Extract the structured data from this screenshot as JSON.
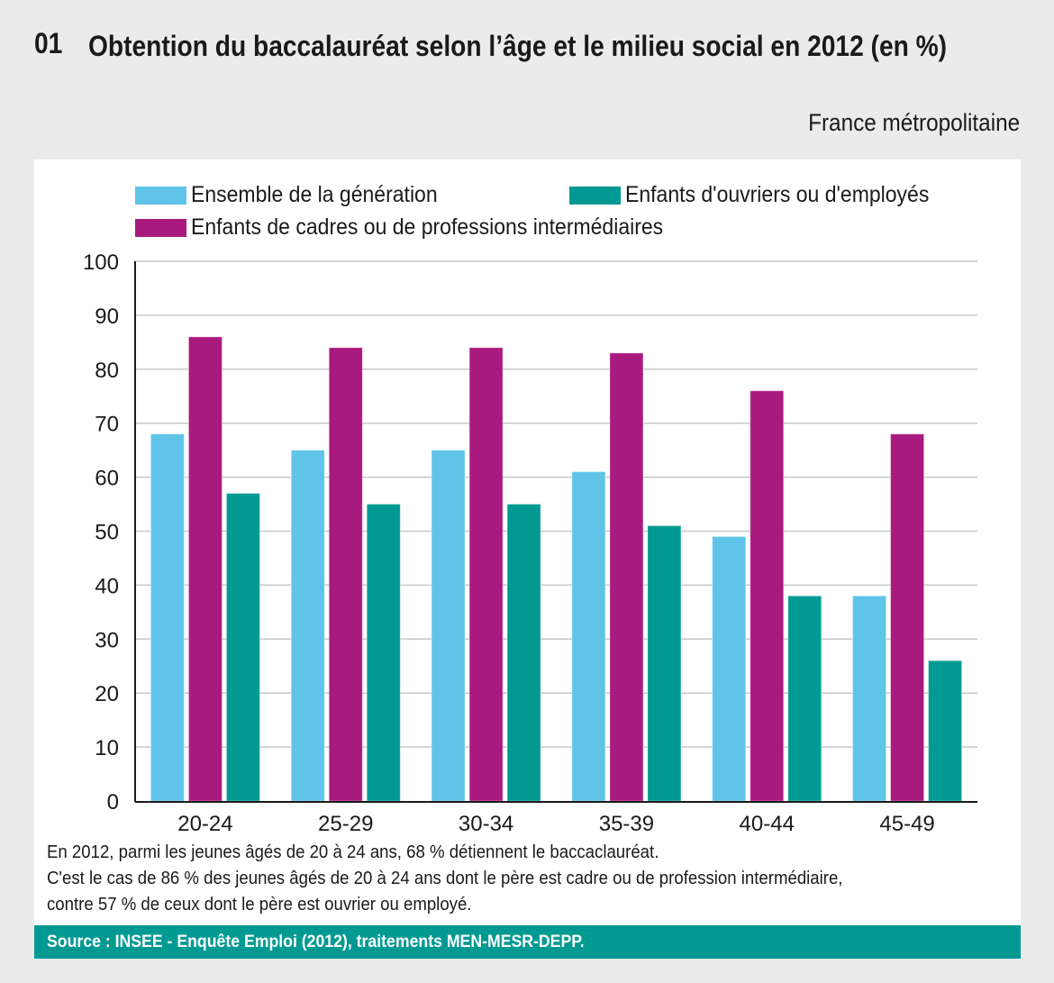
{
  "header": {
    "figure_number": "01",
    "title": "Obtention du baccalauréat selon l’âge et le milieu social en 2012 (en %)",
    "subtitle": "France métropolitaine"
  },
  "colors": {
    "ensemble": "#5fc4e8",
    "ouvriers": "#009a93",
    "cadres": "#a91a7e",
    "source_bar": "#009a93",
    "background": "#ebebeb"
  },
  "chart_data": {
    "type": "bar",
    "title": "Obtention du baccalauréat selon l’âge et le milieu social en 2012 (en %)",
    "xlabel": "",
    "ylabel": "",
    "categories": [
      "20-24",
      "25-29",
      "30-34",
      "35-39",
      "40-44",
      "45-49"
    ],
    "series": [
      {
        "name": "Ensemble de la génération",
        "color": "#5fc4e8",
        "values": [
          68,
          65,
          65,
          61,
          49,
          38
        ]
      },
      {
        "name": "Enfants de cadres ou de professions intermédiaires",
        "color": "#a91a7e",
        "values": [
          86,
          84,
          84,
          83,
          76,
          68
        ]
      },
      {
        "name": "Enfants d'ouvriers ou d'employés",
        "color": "#009a93",
        "values": [
          57,
          55,
          55,
          51,
          38,
          26
        ]
      }
    ],
    "ylim": [
      0,
      100
    ],
    "yticks": [
      "0",
      "10",
      "20",
      "30",
      "40",
      "50",
      "60",
      "70",
      "80",
      "90",
      "100"
    ],
    "grid": true,
    "legend": {
      "placement": "top",
      "entries": [
        "Ensemble de la génération",
        "Enfants d'ouvriers ou d'employés",
        "Enfants de cadres ou de professions intermédiaires"
      ]
    }
  },
  "note": {
    "lines": [
      "En 2012, parmi les jeunes âgés de 20 à 24 ans, 68 % détiennent le baccaclauréat.",
      "C'est le cas de 86 % des jeunes âgés de 20 à 24 ans dont le père est cadre ou de profession intermédiaire,",
      "contre 57 % de ceux dont le père est ouvrier ou employé."
    ]
  },
  "source": "Source : INSEE - Enquête Emploi (2012), traitements MEN-MESR-DEPP."
}
